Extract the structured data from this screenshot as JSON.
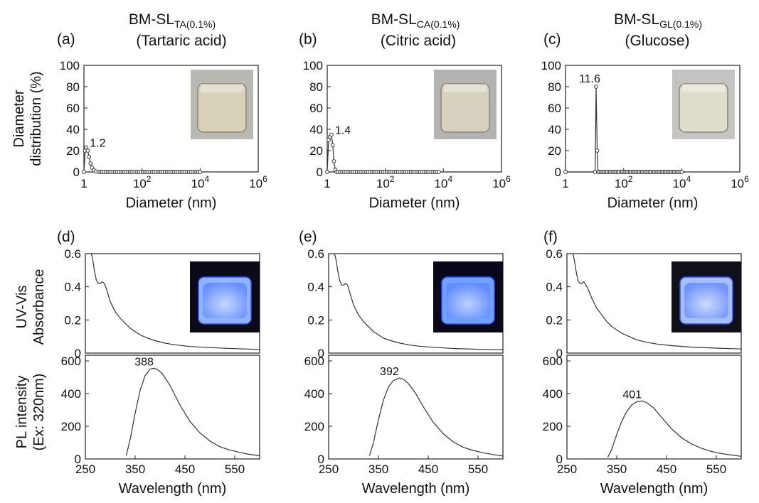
{
  "columns": [
    {
      "title_main": "BM-SL",
      "title_sub": "TA(0.1%)",
      "subtitle": "(Tartaric acid)"
    },
    {
      "title_main": "BM-SL",
      "title_sub": "CA(0.1%)",
      "subtitle": "(Citric acid)"
    },
    {
      "title_main": "BM-SL",
      "title_sub": "GL(0.1%)",
      "subtitle": "(Glucose)"
    }
  ],
  "panel_labels": [
    "(a)",
    "(b)",
    "(c)",
    "(d)",
    "(e)",
    "(f)"
  ],
  "dist_axis": {
    "ylabel_line1": "Diameter",
    "ylabel_line2": "distribution (%)",
    "xlabel": "Diameter (nm)",
    "yticks": [
      "0",
      "20",
      "40",
      "60",
      "80",
      "100"
    ],
    "xticks": [
      {
        "base": "1",
        "exp": ""
      },
      {
        "base": "10",
        "exp": "2"
      },
      {
        "base": "10",
        "exp": "4"
      },
      {
        "base": "10",
        "exp": "6"
      }
    ]
  },
  "uv_axis": {
    "ylabel_line1": "UV-Vis",
    "ylabel_line2": "Absorbance",
    "yticks": [
      "0",
      "0.2",
      "0.4",
      "0.6"
    ]
  },
  "pl_axis": {
    "ylabel_line1": "PL intensity",
    "ylabel_line2": "(Ex: 320nm)",
    "xlabel": "Wavelength (nm)",
    "yticks": [
      "0",
      "200",
      "400",
      "600"
    ],
    "xticks": [
      "250",
      "350",
      "450",
      "550"
    ]
  },
  "chart_data": [
    {
      "type": "scatter",
      "panel": "(a)",
      "xscale": "log",
      "xlim": [
        1,
        1000000
      ],
      "ylim": [
        0,
        100
      ],
      "xlabel": "Diameter (nm)",
      "ylabel": "Diameter distribution (%)",
      "peak_label": "1.2",
      "points": [
        [
          1.0,
          0
        ],
        [
          1.1,
          20
        ],
        [
          1.2,
          23
        ],
        [
          1.35,
          20
        ],
        [
          1.5,
          14
        ],
        [
          1.7,
          8
        ],
        [
          1.9,
          4
        ],
        [
          2.2,
          1.5
        ],
        [
          2.6,
          0.5
        ],
        [
          3.2,
          0
        ]
      ],
      "tail_from": 3.2,
      "tail_to": 10000
    },
    {
      "type": "scatter",
      "panel": "(b)",
      "xscale": "log",
      "xlim": [
        1,
        1000000
      ],
      "ylim": [
        0,
        100
      ],
      "xlabel": "Diameter (nm)",
      "ylabel": "",
      "peak_label": "1.4",
      "points": [
        [
          1.0,
          0
        ],
        [
          1.12,
          30
        ],
        [
          1.25,
          33
        ],
        [
          1.4,
          35
        ],
        [
          1.55,
          25
        ],
        [
          1.7,
          10
        ],
        [
          1.9,
          2
        ],
        [
          2.1,
          0
        ]
      ],
      "tail_from": 2.1,
      "tail_to": 7000
    },
    {
      "type": "scatter",
      "panel": "(c)",
      "xscale": "log",
      "xlim": [
        1,
        1000000
      ],
      "ylim": [
        0,
        100
      ],
      "xlabel": "Diameter (nm)",
      "ylabel": "",
      "peak_label": "11.6",
      "points": [
        [
          1.0,
          0
        ],
        [
          10.5,
          0
        ],
        [
          11.3,
          80
        ],
        [
          12.3,
          20
        ],
        [
          13.2,
          0
        ]
      ],
      "tail_from": 13.2,
      "tail_to": 10000
    },
    {
      "type": "line",
      "panel": "(d)",
      "xlim": [
        250,
        600
      ],
      "ylim": [
        0,
        0.6
      ],
      "ylabel": "UV-Vis Absorbance",
      "x": [
        262,
        265,
        268,
        272,
        276,
        280,
        284,
        288,
        292,
        296,
        300,
        305,
        310,
        320,
        330,
        340,
        350,
        360,
        375,
        390,
        410,
        430,
        460,
        500,
        550,
        600
      ],
      "y": [
        0.6,
        0.56,
        0.5,
        0.44,
        0.42,
        0.42,
        0.43,
        0.42,
        0.39,
        0.35,
        0.31,
        0.28,
        0.25,
        0.21,
        0.18,
        0.15,
        0.13,
        0.11,
        0.09,
        0.075,
        0.06,
        0.05,
        0.04,
        0.033,
        0.027,
        0.022
      ]
    },
    {
      "type": "line",
      "panel": "(e)",
      "xlim": [
        250,
        600
      ],
      "ylim": [
        0,
        0.6
      ],
      "ylabel": "",
      "x": [
        262,
        265,
        268,
        272,
        276,
        280,
        284,
        288,
        292,
        296,
        300,
        305,
        310,
        320,
        330,
        340,
        350,
        360,
        375,
        390,
        410,
        430,
        460,
        500,
        550,
        600
      ],
      "y": [
        0.6,
        0.56,
        0.5,
        0.44,
        0.41,
        0.41,
        0.42,
        0.41,
        0.37,
        0.33,
        0.29,
        0.26,
        0.23,
        0.19,
        0.16,
        0.13,
        0.11,
        0.09,
        0.075,
        0.062,
        0.05,
        0.042,
        0.035,
        0.028,
        0.023,
        0.02
      ]
    },
    {
      "type": "line",
      "panel": "(f)",
      "xlim": [
        250,
        600
      ],
      "ylim": [
        0,
        0.6
      ],
      "ylabel": "",
      "x": [
        262,
        265,
        268,
        272,
        276,
        280,
        284,
        288,
        292,
        296,
        300,
        305,
        310,
        320,
        330,
        340,
        350,
        360,
        375,
        390,
        410,
        430,
        460,
        500,
        550,
        600
      ],
      "y": [
        0.6,
        0.56,
        0.5,
        0.44,
        0.42,
        0.42,
        0.43,
        0.41,
        0.39,
        0.36,
        0.33,
        0.3,
        0.27,
        0.23,
        0.19,
        0.16,
        0.14,
        0.12,
        0.1,
        0.08,
        0.065,
        0.055,
        0.045,
        0.036,
        0.03,
        0.025
      ]
    },
    {
      "type": "line",
      "panel": "(d)",
      "xlim": [
        250,
        600
      ],
      "ylim": [
        0,
        600
      ],
      "xlabel": "Wavelength (nm)",
      "ylabel": "PL intensity (Ex: 320nm)",
      "peak_label": "388",
      "x": [
        332,
        340,
        350,
        360,
        370,
        380,
        388,
        395,
        405,
        420,
        440,
        460,
        480,
        500,
        520,
        540,
        560,
        580,
        600
      ],
      "y": [
        20,
        120,
        280,
        420,
        510,
        550,
        555,
        548,
        520,
        450,
        330,
        230,
        160,
        110,
        75,
        55,
        40,
        28,
        20
      ]
    },
    {
      "type": "line",
      "panel": "(e)",
      "xlim": [
        250,
        600
      ],
      "ylim": [
        0,
        600
      ],
      "xlabel": "Wavelength (nm)",
      "ylabel": "",
      "peak_label": "392",
      "x": [
        332,
        340,
        350,
        360,
        370,
        380,
        392,
        400,
        410,
        425,
        440,
        460,
        480,
        500,
        520,
        540,
        560,
        580,
        600
      ],
      "y": [
        20,
        100,
        240,
        360,
        440,
        480,
        495,
        488,
        462,
        400,
        320,
        225,
        155,
        105,
        72,
        52,
        38,
        27,
        18
      ]
    },
    {
      "type": "line",
      "panel": "(f)",
      "xlim": [
        250,
        600
      ],
      "ylim": [
        0,
        600
      ],
      "xlabel": "Wavelength (nm)",
      "ylabel": "",
      "peak_label": "401",
      "x": [
        332,
        340,
        350,
        360,
        370,
        380,
        390,
        401,
        410,
        425,
        440,
        460,
        480,
        500,
        520,
        540,
        560,
        580,
        600
      ],
      "y": [
        10,
        60,
        150,
        230,
        290,
        330,
        350,
        355,
        345,
        310,
        255,
        185,
        130,
        92,
        65,
        46,
        33,
        24,
        16
      ]
    }
  ],
  "insets": [
    {
      "panel": "(a)",
      "kind": "daylight",
      "liquid": "#d8d2bb",
      "bg": "#b9b8b3"
    },
    {
      "panel": "(b)",
      "kind": "daylight",
      "liquid": "#d6d1bf",
      "bg": "#b3b3b1"
    },
    {
      "panel": "(c)",
      "kind": "daylight",
      "liquid": "#e0ddcc",
      "bg": "#c4c4c2"
    },
    {
      "panel": "(d)",
      "kind": "uv",
      "liquid": "#8fb3ff",
      "bg": "#0b0b18"
    },
    {
      "panel": "(e)",
      "kind": "uv",
      "liquid": "#6fa2ff",
      "bg": "#08081a"
    },
    {
      "panel": "(f)",
      "kind": "uv",
      "liquid": "#a7bff2",
      "bg": "#101018"
    }
  ]
}
